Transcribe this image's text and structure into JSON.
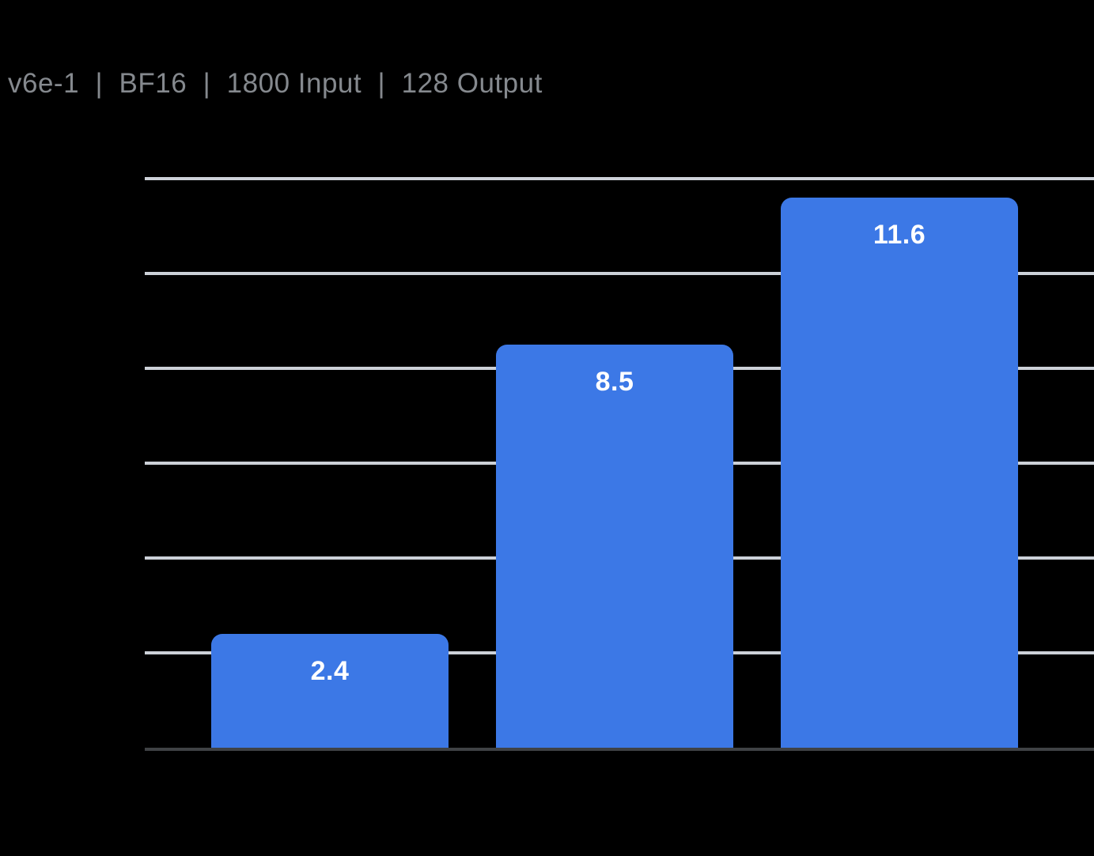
{
  "title": "v6e-1  |  BF16  |  1800 Input  |  128 Output",
  "colors": {
    "background": "#000000",
    "title_text": "#85898e",
    "gridline": "#ccd1d8",
    "axis_line": "#3f4245",
    "bar": "#3c78e6",
    "bar_label": "#ffffff"
  },
  "chart_data": {
    "type": "bar",
    "title": "v6e-1  |  BF16  |  1800 Input  |  128 Output",
    "categories": [
      "",
      "",
      ""
    ],
    "values": [
      2.4,
      8.5,
      11.6
    ],
    "data_labels": [
      "2.4",
      "8.5",
      "11.6"
    ],
    "xlabel": "",
    "ylabel": "",
    "ylim": [
      0,
      12
    ],
    "gridline_values": [
      2,
      4,
      6,
      8,
      10,
      12
    ],
    "grid": "horizontal",
    "legend": false,
    "x_tick_labels_visible": false,
    "y_tick_labels_visible": false,
    "bar_color": "#3c78e6",
    "label_position": "inside-top"
  }
}
